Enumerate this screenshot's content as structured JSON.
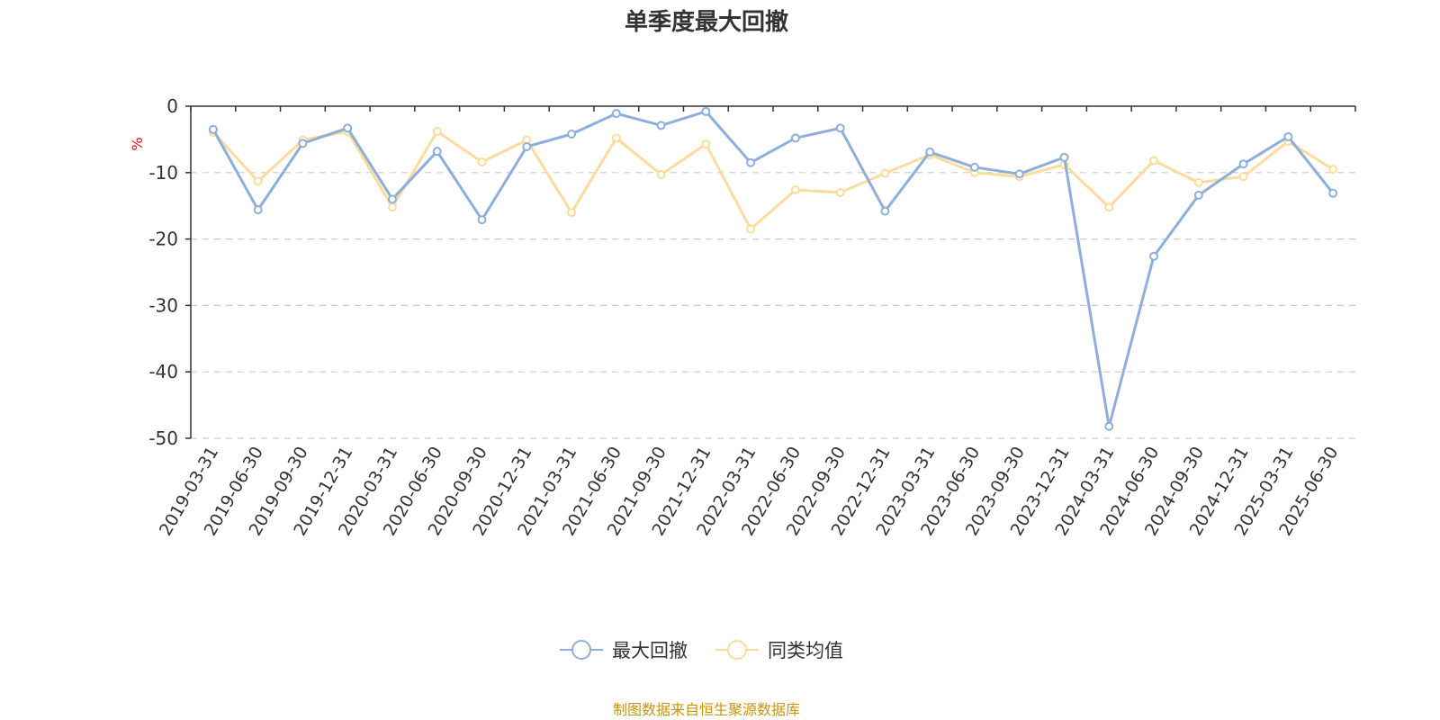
{
  "chart_data": {
    "type": "line",
    "title": "单季度最大回撤",
    "ylabel": "%",
    "xlabel": "",
    "ylim": [
      -50,
      0
    ],
    "yticks": [
      0,
      -10,
      -20,
      -30,
      -40,
      -50
    ],
    "grid": true,
    "legend_placement": "bottom",
    "categories": [
      "2019-03-31",
      "2019-06-30",
      "2019-09-30",
      "2019-12-31",
      "2020-03-31",
      "2020-06-30",
      "2020-09-30",
      "2020-12-31",
      "2021-03-31",
      "2021-06-30",
      "2021-09-30",
      "2021-12-31",
      "2022-03-31",
      "2022-06-30",
      "2022-09-30",
      "2022-12-31",
      "2023-03-31",
      "2023-06-30",
      "2023-09-30",
      "2023-12-31",
      "2024-03-31",
      "2024-06-30",
      "2024-09-30",
      "2024-12-31",
      "2025-03-31",
      "2025-06-30"
    ],
    "series": [
      {
        "name": "最大回撤",
        "color": "#8eaedb",
        "values": [
          -3.5,
          -15.6,
          -5.6,
          -3.3,
          -14.0,
          -6.8,
          -17.1,
          -6.1,
          -4.2,
          -1.1,
          -2.9,
          -0.8,
          -8.5,
          -4.8,
          -3.3,
          -15.8,
          -6.9,
          -9.2,
          -10.2,
          -7.7,
          -48.2,
          -22.6,
          -13.4,
          -8.7,
          -4.6,
          -13.1
        ]
      },
      {
        "name": "同类均值",
        "color": "#fbdc9c",
        "values": [
          -3.9,
          -11.3,
          -5.1,
          -3.8,
          -15.2,
          -3.8,
          -8.4,
          -5.1,
          -16.0,
          -4.8,
          -10.3,
          -5.7,
          -18.5,
          -12.6,
          -13.0,
          -10.1,
          -7.3,
          -10.0,
          -10.6,
          -8.8,
          -15.2,
          -8.2,
          -11.5,
          -10.6,
          -5.3,
          -9.5
        ]
      }
    ],
    "source": "制图数据来自恒生聚源数据库"
  }
}
